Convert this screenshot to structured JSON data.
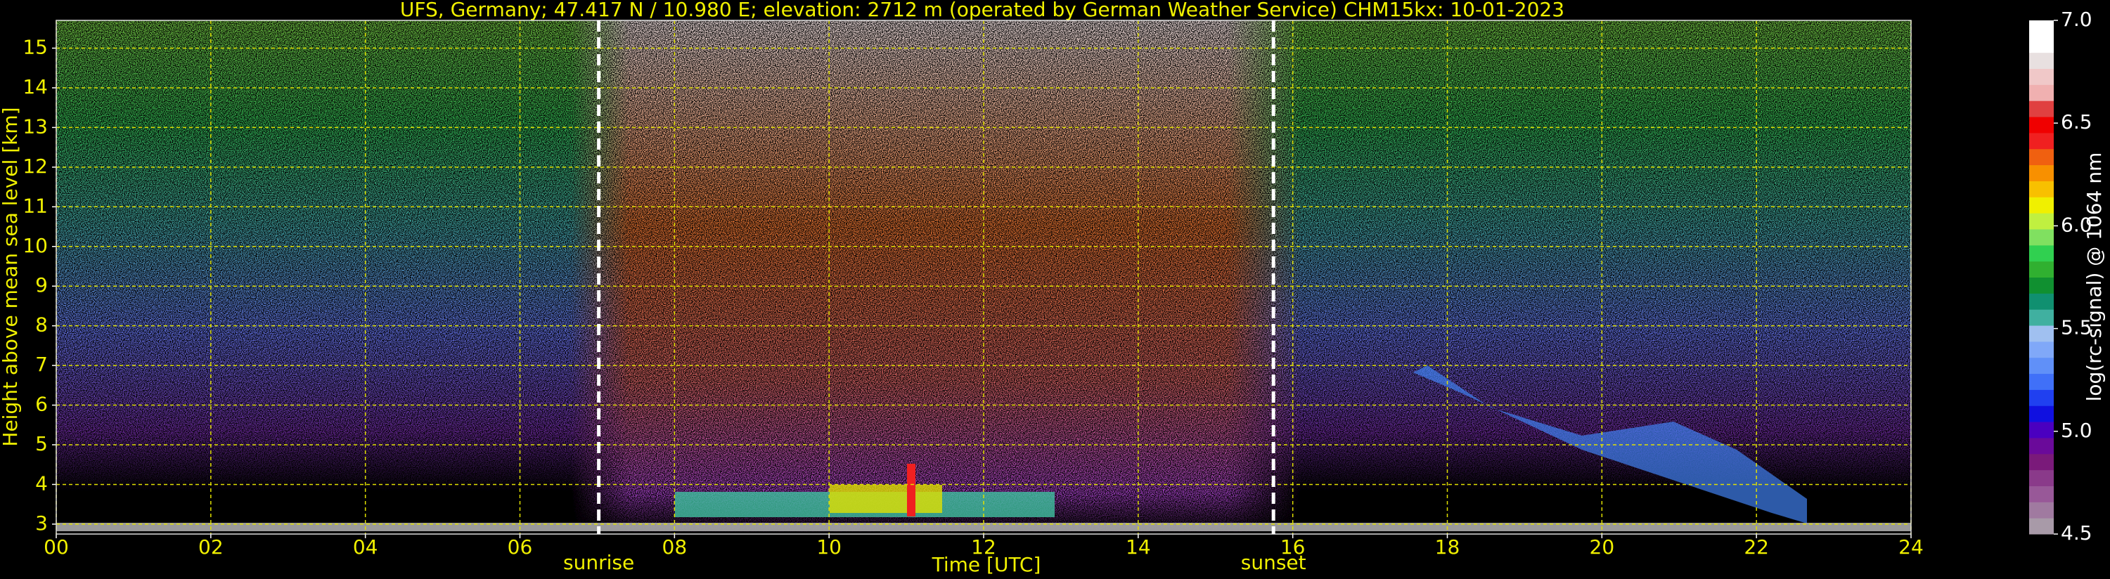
{
  "chart_data": {
    "type": "heatmap",
    "title": "UFS, Germany; 47.417 N / 10.980 E; elevation: 2712 m  (operated by German Weather Service)    CHM15kx: 10-01-2023",
    "xlabel": "Time [UTC]",
    "ylabel": "Height above mean sea level [km]",
    "xlim": [
      0,
      24
    ],
    "xticks": [
      {
        "value": 0,
        "label": "00"
      },
      {
        "value": 2,
        "label": "02"
      },
      {
        "value": 4,
        "label": "04"
      },
      {
        "value": 6,
        "label": "06"
      },
      {
        "value": 8,
        "label": "08"
      },
      {
        "value": 10,
        "label": "10"
      },
      {
        "value": 12,
        "label": "12"
      },
      {
        "value": 14,
        "label": "14"
      },
      {
        "value": 16,
        "label": "16"
      },
      {
        "value": 18,
        "label": "18"
      },
      {
        "value": 20,
        "label": "20"
      },
      {
        "value": 22,
        "label": "22"
      },
      {
        "value": 24,
        "label": "24"
      }
    ],
    "ylim": [
      2.75,
      15.7
    ],
    "yticks": [
      3,
      4,
      5,
      6,
      7,
      8,
      9,
      10,
      11,
      12,
      13,
      14,
      15
    ],
    "grid": true,
    "annotations": [
      {
        "label": "sunrise",
        "x": 7.02
      },
      {
        "label": "sunset",
        "x": 15.75
      }
    ],
    "colorbar": {
      "label": "log(rc-signal) @ 1064 nm",
      "clim": [
        4.5,
        7.0
      ],
      "ticks": [
        4.5,
        {
          "value": 5,
          "label": "5.0"
        },
        5.5,
        {
          "value": 6,
          "label": "6.0"
        },
        6.5,
        {
          "value": 7,
          "label": "7.0"
        }
      ],
      "colors": [
        "#a89aa8",
        "#a07aa0",
        "#985898",
        "#8a3a8a",
        "#7a1a7a",
        "#6a0a9a",
        "#4a00c0",
        "#1010e0",
        "#2040f0",
        "#4070f8",
        "#6090f8",
        "#80a8f8",
        "#a0c0f0",
        "#40b0a0",
        "#109070",
        "#109030",
        "#30b030",
        "#30d050",
        "#80e060",
        "#c0f040",
        "#f0f000",
        "#f8c000",
        "#f89000",
        "#f06010",
        "#f02020",
        "#f00000",
        "#e04040",
        "#f0b0b0",
        "#f0c8c8",
        "#e8e0e0",
        "#ffffff",
        "#ffffff"
      ]
    }
  }
}
